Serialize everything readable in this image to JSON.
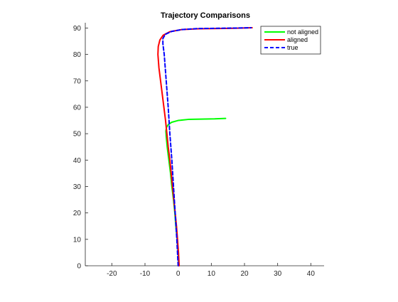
{
  "chart_data": {
    "type": "line",
    "title": "Trajectory Comparisons",
    "xlabel": "",
    "ylabel": "",
    "xlim": [
      -28,
      44
    ],
    "ylim": [
      0,
      92
    ],
    "xticks": [
      -20,
      -10,
      0,
      10,
      20,
      30,
      40
    ],
    "yticks": [
      0,
      10,
      20,
      30,
      40,
      50,
      60,
      70,
      80,
      90
    ],
    "grid": false,
    "legend_position": "top-right",
    "series": [
      {
        "name": "not aligned",
        "color": "#00ff00",
        "style": "solid",
        "points": [
          [
            0.2,
            0
          ],
          [
            0.0,
            5
          ],
          [
            -0.3,
            10
          ],
          [
            -0.7,
            15
          ],
          [
            -1.0,
            20
          ],
          [
            -1.4,
            25
          ],
          [
            -1.9,
            30
          ],
          [
            -2.3,
            35
          ],
          [
            -2.8,
            40
          ],
          [
            -3.3,
            45
          ],
          [
            -3.6,
            49
          ],
          [
            -3.7,
            51
          ],
          [
            -3.5,
            52.4
          ],
          [
            -3.0,
            53.4
          ],
          [
            -2.0,
            54.3
          ],
          [
            0.0,
            55.0
          ],
          [
            3.0,
            55.4
          ],
          [
            7.0,
            55.5
          ],
          [
            11.0,
            55.6
          ],
          [
            14.3,
            55.8
          ]
        ]
      },
      {
        "name": "aligned",
        "color": "#ff0000",
        "style": "solid",
        "points": [
          [
            0.3,
            0
          ],
          [
            0.1,
            5
          ],
          [
            -0.2,
            10
          ],
          [
            -0.5,
            15
          ],
          [
            -0.9,
            20
          ],
          [
            -1.3,
            25
          ],
          [
            -1.7,
            30
          ],
          [
            -2.1,
            35
          ],
          [
            -2.5,
            40
          ],
          [
            -3.0,
            45
          ],
          [
            -3.4,
            50
          ],
          [
            -3.8,
            55
          ],
          [
            -4.3,
            60
          ],
          [
            -4.8,
            65
          ],
          [
            -5.3,
            70
          ],
          [
            -5.8,
            75
          ],
          [
            -6.1,
            80
          ],
          [
            -6.0,
            83
          ],
          [
            -5.5,
            85.5
          ],
          [
            -4.5,
            87.3
          ],
          [
            -2.5,
            88.6
          ],
          [
            1.0,
            89.4
          ],
          [
            6.0,
            89.7
          ],
          [
            12.0,
            89.8
          ],
          [
            17.0,
            89.9
          ],
          [
            22.3,
            90.1
          ]
        ]
      },
      {
        "name": "true",
        "color": "#0000ff",
        "style": "dashed",
        "points": [
          [
            0.0,
            0
          ],
          [
            -0.4,
            10
          ],
          [
            -0.9,
            20
          ],
          [
            -1.4,
            30
          ],
          [
            -1.9,
            40
          ],
          [
            -2.5,
            50
          ],
          [
            -3.0,
            60
          ],
          [
            -3.6,
            70
          ],
          [
            -4.2,
            80
          ],
          [
            -4.6,
            84
          ],
          [
            -4.6,
            86
          ],
          [
            -3.9,
            87.6
          ],
          [
            -2.0,
            88.7
          ],
          [
            1.0,
            89.4
          ],
          [
            6.0,
            89.8
          ],
          [
            12.0,
            89.9
          ],
          [
            18.0,
            90.0
          ],
          [
            22.0,
            90.1
          ]
        ]
      }
    ]
  }
}
